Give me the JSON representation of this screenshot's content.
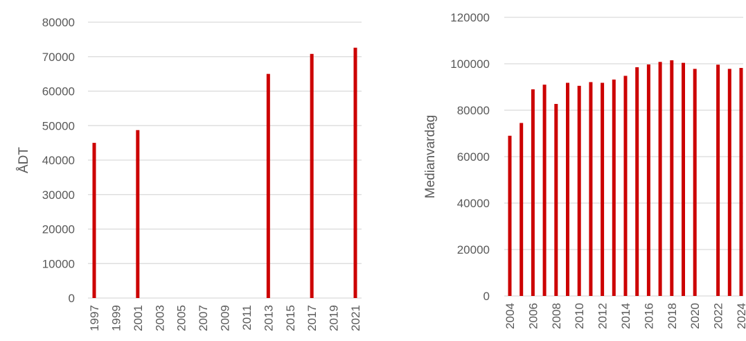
{
  "colors": {
    "bar": "#cc0000",
    "grid": "#d9d9d9",
    "text": "#595959"
  },
  "chart_data": [
    {
      "type": "bar",
      "title": "",
      "xlabel": "",
      "ylabel": "ÅDT",
      "ylim": [
        0,
        80000
      ],
      "yticks": [
        0,
        10000,
        20000,
        30000,
        40000,
        50000,
        60000,
        70000,
        80000
      ],
      "grid": true,
      "categories": [
        "1997",
        "1998",
        "1999",
        "2000",
        "2001",
        "2002",
        "2003",
        "2004",
        "2005",
        "2006",
        "2007",
        "2008",
        "2009",
        "2010",
        "2011",
        "2012",
        "2013",
        "2014",
        "2015",
        "2016",
        "2017",
        "2018",
        "2019",
        "2020",
        "2021"
      ],
      "xtick_labels": [
        "1997",
        "1999",
        "2001",
        "2003",
        "2005",
        "2007",
        "2009",
        "2011",
        "2013",
        "2015",
        "2017",
        "2019",
        "2021"
      ],
      "values": [
        45000,
        null,
        null,
        null,
        48700,
        null,
        null,
        null,
        null,
        null,
        null,
        null,
        null,
        null,
        null,
        null,
        65000,
        null,
        null,
        null,
        70800,
        null,
        null,
        null,
        72600
      ]
    },
    {
      "type": "bar",
      "title": "",
      "xlabel": "",
      "ylabel": "Medianvardag",
      "ylim": [
        0,
        120000
      ],
      "yticks": [
        0,
        20000,
        40000,
        60000,
        80000,
        100000,
        120000
      ],
      "grid": true,
      "categories": [
        "2004",
        "2005",
        "2006",
        "2007",
        "2008",
        "2009",
        "2010",
        "2011",
        "2012",
        "2013",
        "2014",
        "2015",
        "2016",
        "2017",
        "2018",
        "2019",
        "2020",
        "2021",
        "2022",
        "2023",
        "2024"
      ],
      "xtick_labels": [
        "2004",
        "2006",
        "2008",
        "2010",
        "2012",
        "2014",
        "2016",
        "2018",
        "2020",
        "2022",
        "2024"
      ],
      "values": [
        69000,
        74500,
        89000,
        91000,
        82700,
        91800,
        90500,
        92100,
        91800,
        93200,
        94800,
        98500,
        99700,
        100800,
        101500,
        100400,
        97800,
        null,
        99600,
        97800,
        98200
      ]
    }
  ]
}
